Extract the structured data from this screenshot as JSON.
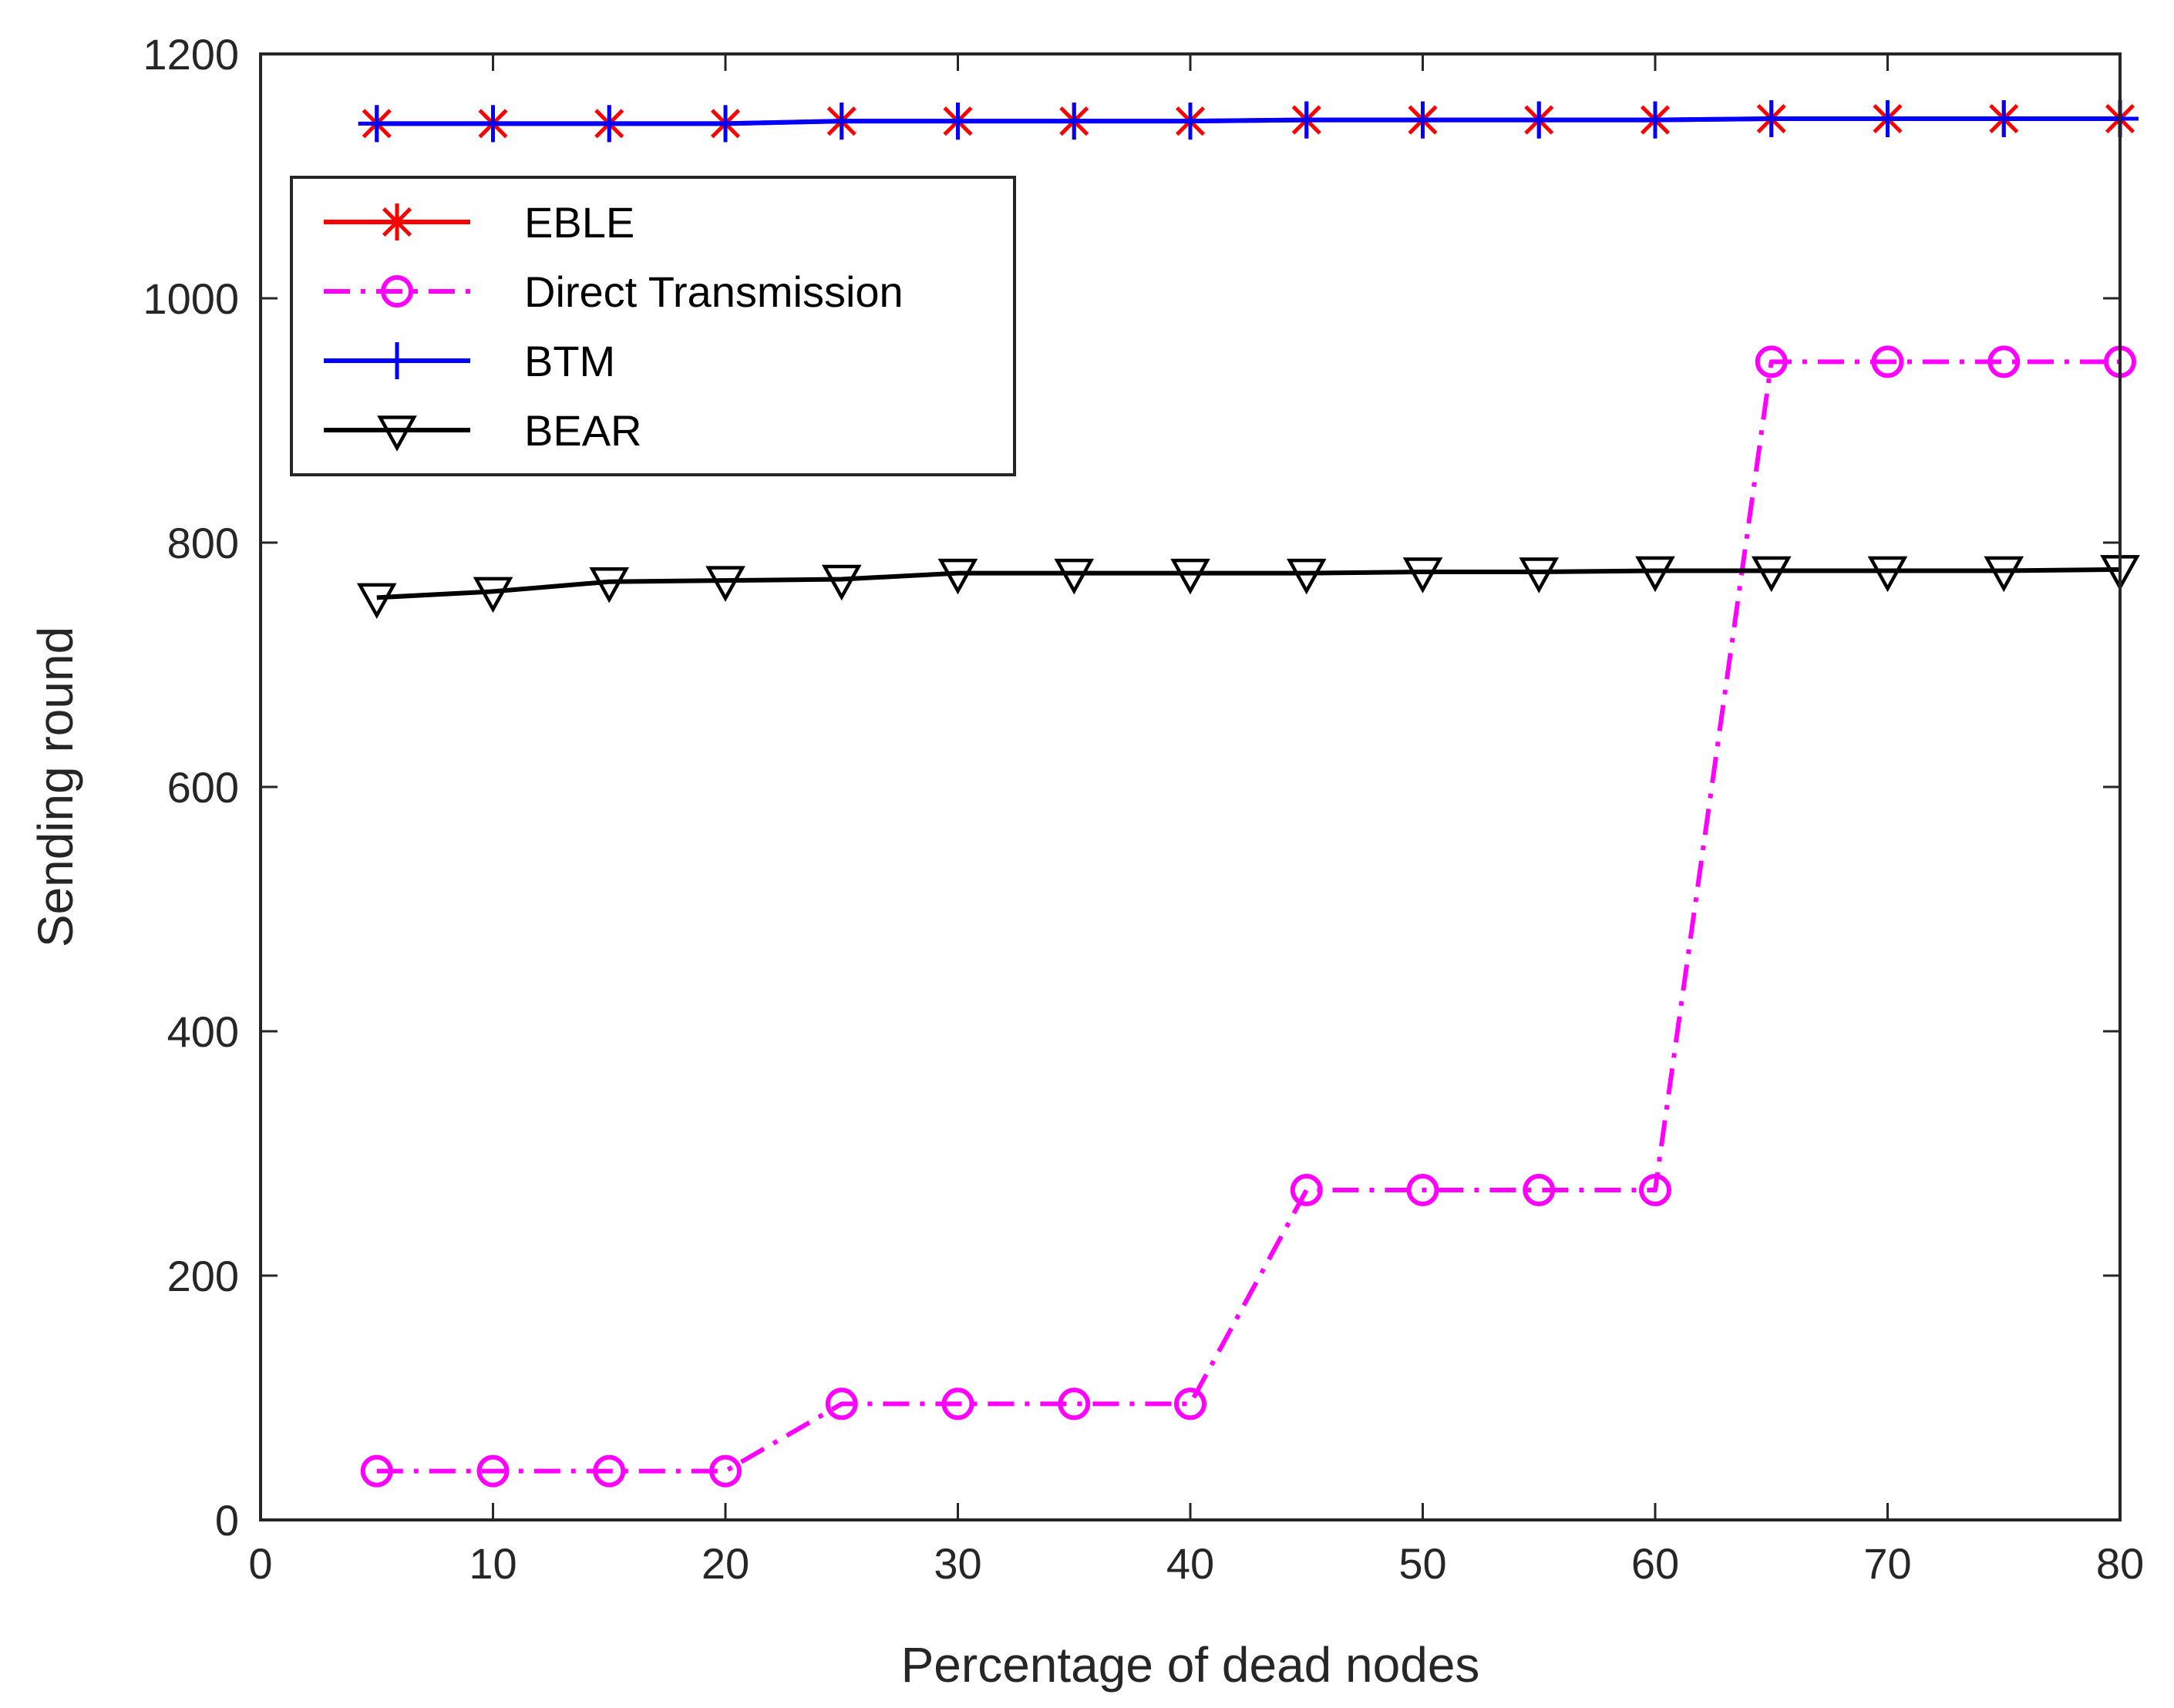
{
  "chart_data": {
    "type": "line",
    "title": "",
    "xlabel": "Percentage of dead nodes",
    "ylabel": "Sending round",
    "xlim": [
      0,
      80
    ],
    "ylim": [
      0,
      1200
    ],
    "xticks": [
      "0",
      "10",
      "20",
      "30",
      "40",
      "50",
      "60",
      "70",
      "80"
    ],
    "yticks": [
      "0",
      "200",
      "400",
      "600",
      "800",
      "1000",
      "1200"
    ],
    "grid": false,
    "legend_position": "top-left",
    "x": [
      5,
      10,
      15,
      20,
      25,
      30,
      35,
      40,
      45,
      50,
      55,
      60,
      65,
      70,
      75,
      80
    ],
    "series": [
      {
        "name": "EBLE",
        "color": "#ff0000",
        "line_style": "solid",
        "marker": "asterisk",
        "values": [
          1143,
          1143,
          1143,
          1143,
          1145,
          1145,
          1145,
          1145,
          1146,
          1146,
          1146,
          1146,
          1147,
          1147,
          1147,
          1147
        ]
      },
      {
        "name": "Direct Transmission",
        "color": "#ff00ff",
        "line_style": "dash-dot",
        "marker": "circle",
        "values": [
          40,
          40,
          40,
          40,
          95,
          95,
          95,
          95,
          270,
          270,
          270,
          270,
          948,
          948,
          948,
          948
        ]
      },
      {
        "name": "BTM",
        "color": "#0000ff",
        "line_style": "solid",
        "marker": "plus",
        "values": [
          1143,
          1143,
          1143,
          1143,
          1145,
          1145,
          1145,
          1145,
          1146,
          1146,
          1146,
          1146,
          1147,
          1147,
          1147,
          1147
        ]
      },
      {
        "name": "BEAR",
        "color": "#000000",
        "line_style": "solid",
        "marker": "triangle-down",
        "values": [
          755,
          760,
          768,
          769,
          770,
          775,
          775,
          775,
          775,
          776,
          776,
          777,
          777,
          777,
          777,
          778
        ]
      }
    ]
  }
}
